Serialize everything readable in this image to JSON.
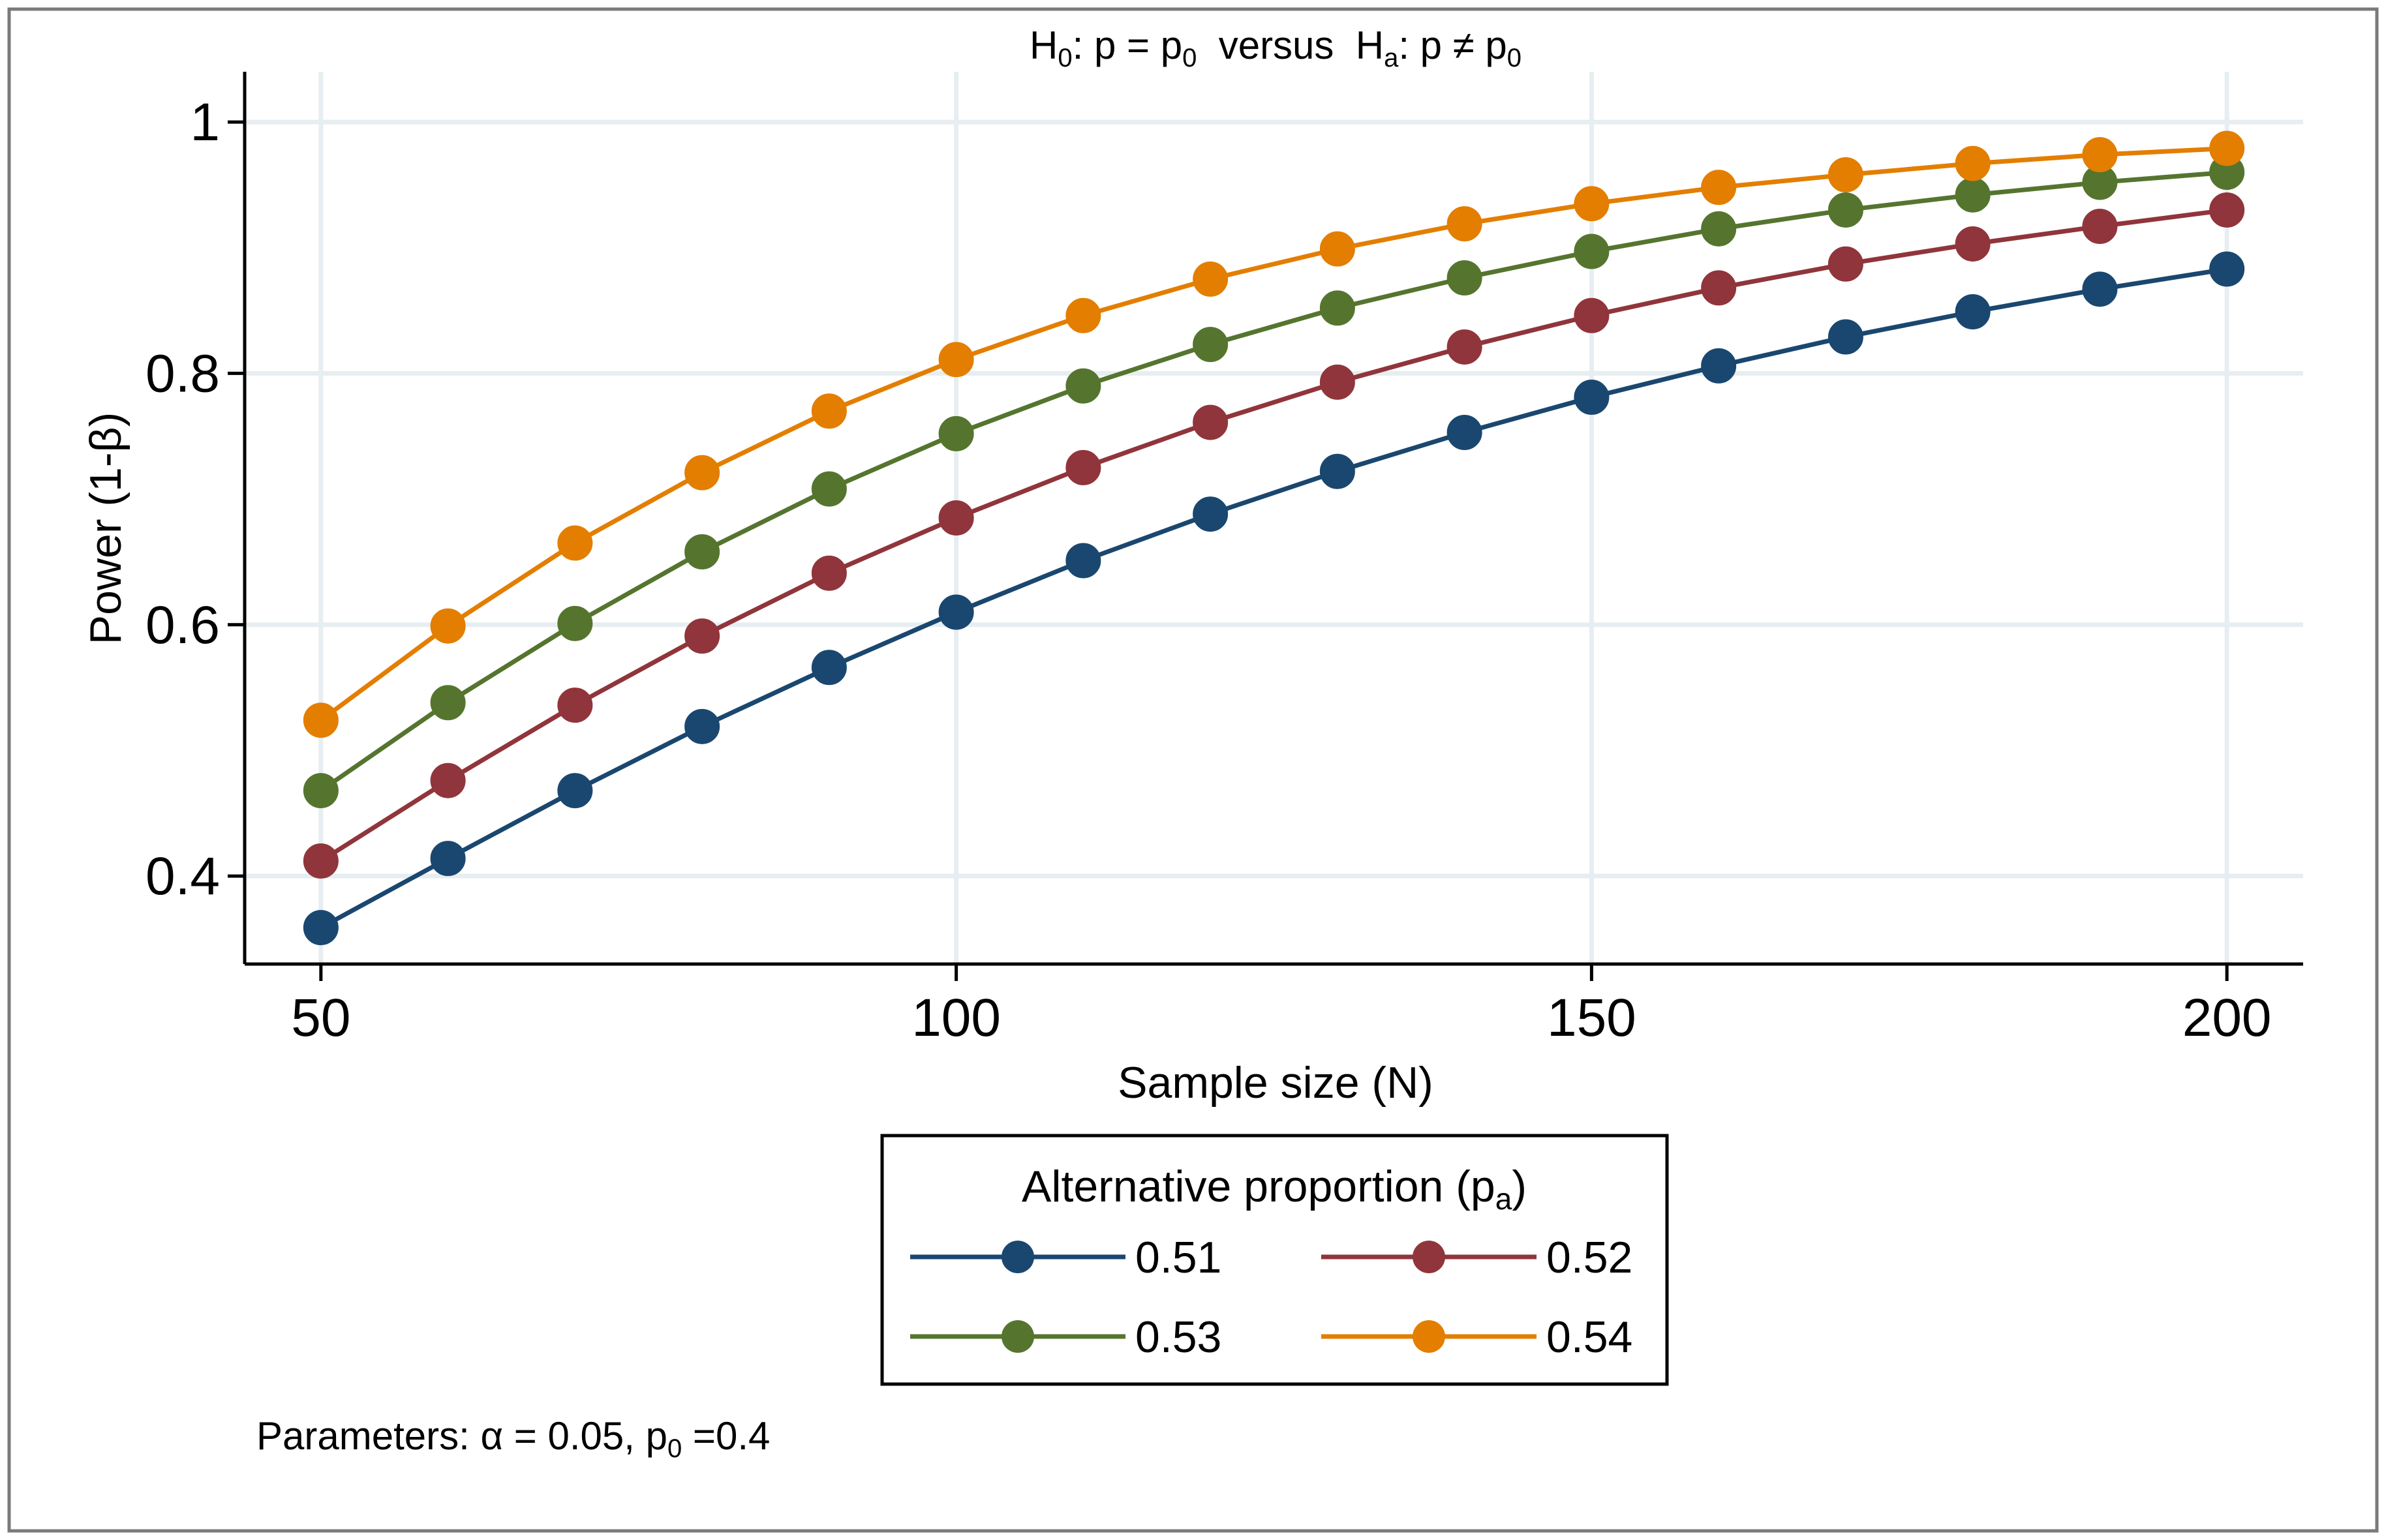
{
  "chart_data": {
    "type": "line",
    "title": "H₀: p = p₀  versus  Hₐ: p ≠ p₀",
    "title_parts": {
      "h0": "H",
      "h0_sub": "0",
      "h0_rest": ": p = p",
      "p0_sub": "0",
      "versus": "  versus  H",
      "ha_sub": "a",
      "ha_rest": ": p ≠ p",
      "p0_sub2": "0"
    },
    "xlabel": "Sample size (N)",
    "ylabel": "Power (1-β)",
    "xlim": [
      44,
      206
    ],
    "ylim": [
      0.33,
      1.04
    ],
    "x_ticks": [
      50,
      100,
      150,
      200
    ],
    "x_tick_labels": [
      "50",
      "100",
      "150",
      "200"
    ],
    "y_ticks": [
      0.4,
      0.6,
      0.8,
      1.0
    ],
    "y_tick_labels": [
      "0.4",
      "0.6",
      "0.8",
      "1"
    ],
    "grid": true,
    "x": [
      50,
      60,
      70,
      80,
      90,
      100,
      110,
      120,
      130,
      140,
      150,
      160,
      170,
      180,
      190,
      200
    ],
    "series": [
      {
        "name": "0.51",
        "color": "#1a476f",
        "values": [
          0.359,
          0.414,
          0.468,
          0.519,
          0.566,
          0.61,
          0.651,
          0.688,
          0.722,
          0.753,
          0.781,
          0.806,
          0.829,
          0.849,
          0.867,
          0.883
        ]
      },
      {
        "name": "0.52",
        "color": "#90353b",
        "values": [
          0.412,
          0.476,
          0.536,
          0.591,
          0.641,
          0.685,
          0.725,
          0.761,
          0.793,
          0.821,
          0.846,
          0.868,
          0.887,
          0.903,
          0.917,
          0.93
        ]
      },
      {
        "name": "0.53",
        "color": "#55752f",
        "values": [
          0.468,
          0.538,
          0.601,
          0.658,
          0.708,
          0.752,
          0.79,
          0.823,
          0.852,
          0.876,
          0.897,
          0.915,
          0.93,
          0.942,
          0.952,
          0.96
        ]
      },
      {
        "name": "0.54",
        "color": "#e37e00",
        "values": [
          0.524,
          0.599,
          0.665,
          0.721,
          0.77,
          0.811,
          0.846,
          0.875,
          0.899,
          0.919,
          0.935,
          0.948,
          0.958,
          0.967,
          0.974,
          0.979
        ]
      }
    ],
    "legend": {
      "title_prefix": "Alternative proportion (p",
      "title_sub": "a",
      "title_suffix": ")",
      "placement": "bottom-center"
    },
    "note": {
      "prefix": "Parameters: α = 0.05, p",
      "sub": "0",
      "suffix": " =0.4"
    }
  }
}
